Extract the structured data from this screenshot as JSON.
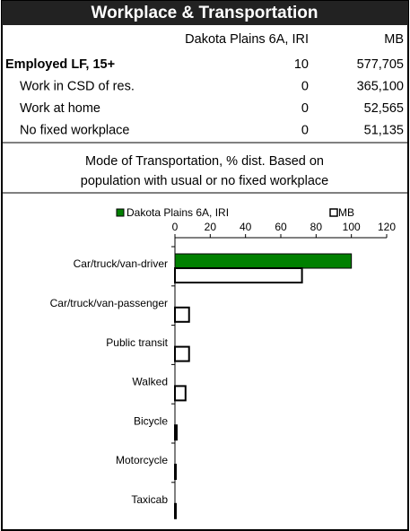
{
  "header": {
    "title": "Workplace & Transportation"
  },
  "table": {
    "columns": [
      "Dakota Plains 6A, IRI",
      "MB"
    ],
    "rows": [
      [
        "Employed LF, 15+",
        "10",
        "577,705"
      ],
      [
        "Work in CSD of res.",
        "0",
        "365,100"
      ],
      [
        "Work at home",
        "0",
        "52,565"
      ],
      [
        "No fixed workplace",
        "0",
        "51,135"
      ]
    ]
  },
  "note": [
    "Mode of Transportation, % dist. Based on",
    "population with usual or no fixed workplace"
  ],
  "chart_data": {
    "type": "hbar",
    "categories": [
      "Car/truck/van-driver",
      "Car/truck/van-passenger",
      "Public transit",
      "Walked",
      "Bicycle",
      "Motorcycle",
      "Taxicab"
    ],
    "series": [
      {
        "name": "Dakota Plains 6A, IRI",
        "color": "#008000",
        "values": [
          100,
          0,
          0,
          0,
          0,
          0,
          0
        ]
      },
      {
        "name": "MB",
        "color": "#ffffff",
        "values": [
          72,
          8,
          8,
          6,
          1,
          0.5,
          0.5
        ]
      }
    ],
    "xlim": [
      0,
      120
    ],
    "xticks": [
      0,
      20,
      40,
      60,
      80,
      100,
      120
    ]
  }
}
